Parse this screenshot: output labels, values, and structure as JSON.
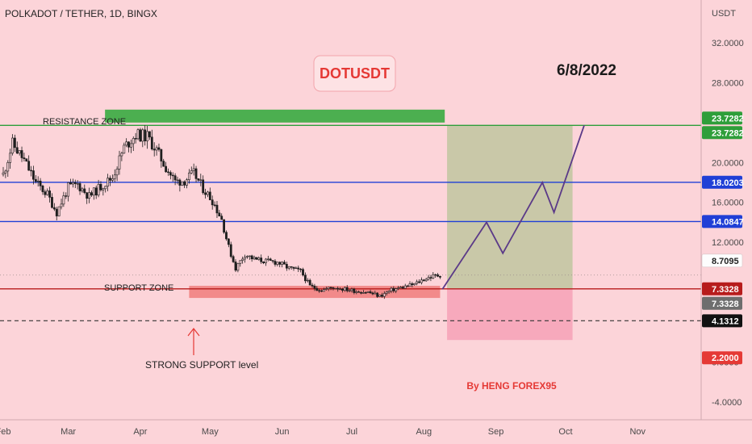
{
  "header": {
    "symbol_title": "POLKADOT / TETHER, 1D, BINGX"
  },
  "annotations": {
    "ticker_box": "DOTUSDT",
    "date": "6/8/2022",
    "author": "By HENG FOREX95",
    "resistance_zone": "RESISTANCE ZONE",
    "support_zone": "SUPPORT ZONE",
    "strong_support": "STRONG SUPPORT level"
  },
  "colors": {
    "background": "#fcd4d9",
    "candle": "#1e1e1e",
    "resistance_zone": "#4caf50",
    "support_zone": "#f28a8a",
    "blue_line": "#1f3fd6",
    "red_line": "#b71c1c",
    "green_line": "#2e9e3a",
    "projection_profit": "#c9c8a8",
    "projection_loss": "#f7a9bc",
    "projection_path": "#5b3a88",
    "dashed_line": "#333333"
  },
  "chart_data": {
    "type": "candlestick",
    "title": "POLKADOT / TETHER, 1D, BINGX",
    "ylabel": "USDT",
    "ylim": [
      -5.8,
      36.3
    ],
    "y_ticks": [
      "32.0000",
      "28.0000",
      "20.0000",
      "16.0000",
      "12.0000",
      "0.0000",
      "-4.0000"
    ],
    "x_ticks": [
      "Feb",
      "Mar",
      "Apr",
      "May",
      "Jun",
      "Jul",
      "Aug",
      "Sep",
      "Oct",
      "Nov"
    ],
    "price_levels": [
      {
        "value": 23.7282,
        "label": "23.7282",
        "style": "green"
      },
      {
        "value": 23.7282,
        "label": "23.7282",
        "style": "green"
      },
      {
        "value": 18.0203,
        "label": "18.0203",
        "style": "blue"
      },
      {
        "value": 14.0847,
        "label": "14.0847",
        "style": "blue"
      },
      {
        "value": 8.7095,
        "label": "8.7095",
        "style": "last"
      },
      {
        "value": 7.3328,
        "label": "7.3328",
        "style": "red"
      },
      {
        "value": 7.3328,
        "label": "7.3328",
        "style": "gray"
      },
      {
        "value": 4.1312,
        "label": "4.1312",
        "style": "black"
      },
      {
        "value": 2.2,
        "label": "2.2000",
        "style": "pinkred"
      }
    ],
    "price_path": [
      [
        "2022-02-01",
        18.8
      ],
      [
        "2022-02-05",
        21.9
      ],
      [
        "2022-02-10",
        20.2
      ],
      [
        "2022-02-15",
        18.0
      ],
      [
        "2022-02-20",
        16.8
      ],
      [
        "2022-02-24",
        15.0
      ],
      [
        "2022-03-01",
        17.5
      ],
      [
        "2022-03-05",
        17.8
      ],
      [
        "2022-03-10",
        16.6
      ],
      [
        "2022-03-15",
        17.6
      ],
      [
        "2022-03-20",
        18.5
      ],
      [
        "2022-03-25",
        21.5
      ],
      [
        "2022-03-30",
        22.8
      ],
      [
        "2022-04-04",
        22.6
      ],
      [
        "2022-04-08",
        21.2
      ],
      [
        "2022-04-12",
        19.5
      ],
      [
        "2022-04-16",
        18.1
      ],
      [
        "2022-04-20",
        18.2
      ],
      [
        "2022-04-24",
        18.9
      ],
      [
        "2022-04-28",
        17.4
      ],
      [
        "2022-05-02",
        16.2
      ],
      [
        "2022-05-06",
        14.3
      ],
      [
        "2022-05-09",
        11.5
      ],
      [
        "2022-05-12",
        9.4
      ],
      [
        "2022-05-16",
        10.8
      ],
      [
        "2022-05-20",
        10.3
      ],
      [
        "2022-05-25",
        10.1
      ],
      [
        "2022-05-30",
        10.0
      ],
      [
        "2022-06-04",
        9.4
      ],
      [
        "2022-06-09",
        9.1
      ],
      [
        "2022-06-13",
        7.6
      ],
      [
        "2022-06-18",
        7.2
      ],
      [
        "2022-06-23",
        7.5
      ],
      [
        "2022-06-28",
        7.3
      ],
      [
        "2022-07-03",
        7.1
      ],
      [
        "2022-07-08",
        7.0
      ],
      [
        "2022-07-13",
        6.6
      ],
      [
        "2022-07-18",
        7.2
      ],
      [
        "2022-07-23",
        7.5
      ],
      [
        "2022-07-28",
        7.8
      ],
      [
        "2022-08-01",
        8.3
      ],
      [
        "2022-08-05",
        8.6
      ],
      [
        "2022-08-08",
        8.7095
      ]
    ],
    "projection_path": [
      [
        "2022-08-09",
        7.3
      ],
      [
        "2022-08-28",
        14.0
      ],
      [
        "2022-09-04",
        10.9
      ],
      [
        "2022-09-21",
        18.0
      ],
      [
        "2022-09-26",
        15.0
      ],
      [
        "2022-10-09",
        23.7282
      ]
    ]
  }
}
